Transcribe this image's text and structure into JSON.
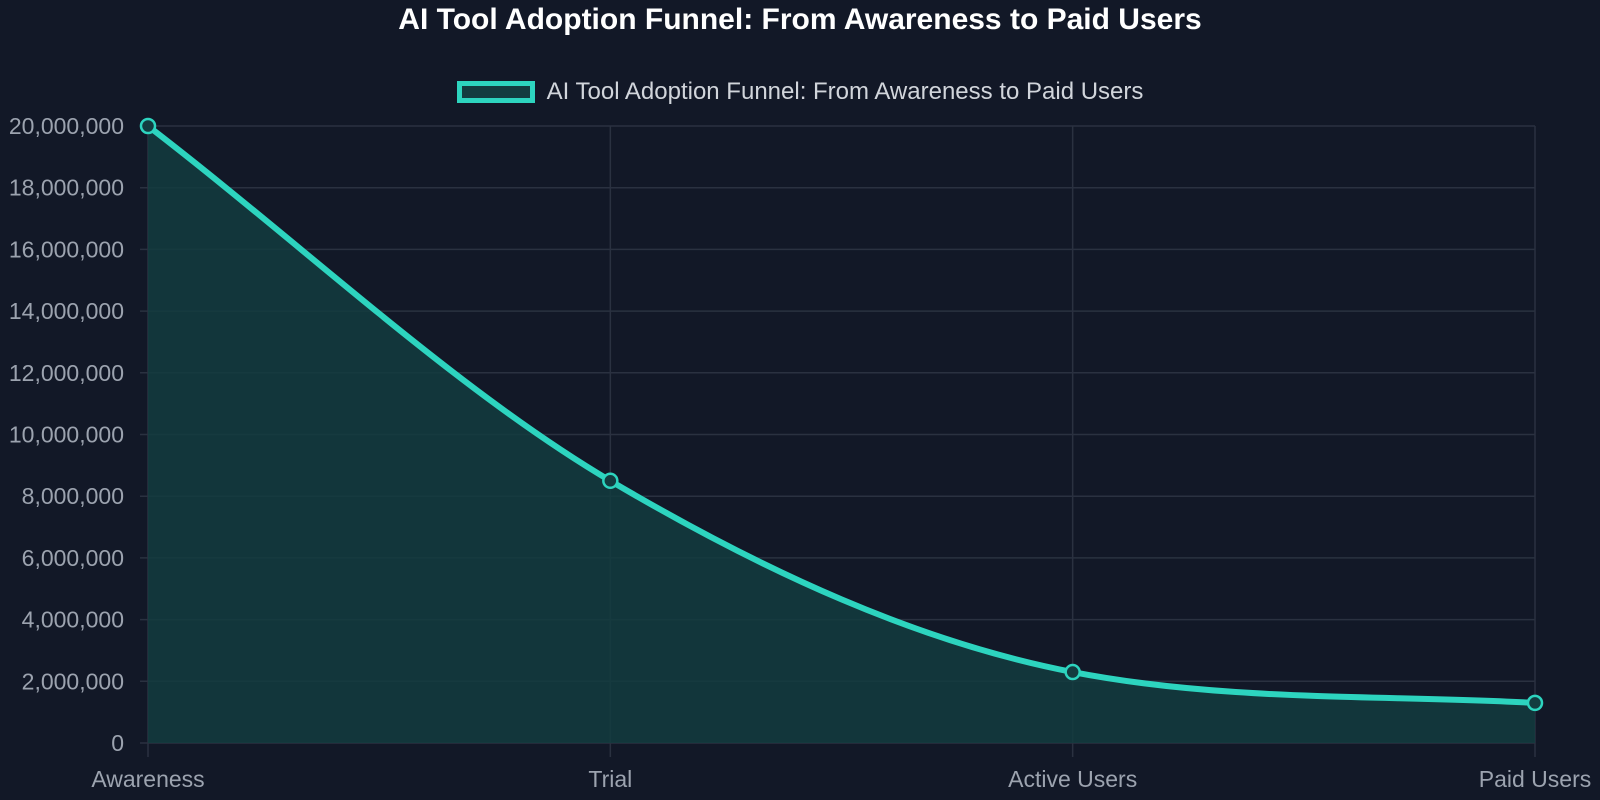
{
  "title": "AI Tool Adoption Funnel: From Awareness to Paid Users",
  "legend": {
    "label": "AI Tool Adoption Funnel: From Awareness to Paid Users"
  },
  "colors": {
    "background": "#121827",
    "line": "#2dd4bf",
    "fill": "#133c40",
    "grid": "#2a3140",
    "tick_text": "#9ca3af",
    "title_text": "#ffffff",
    "legend_text": "#d1d5db"
  },
  "chart_data": {
    "type": "area",
    "title": "AI Tool Adoption Funnel: From Awareness to Paid Users",
    "categories": [
      "Awareness",
      "Trial",
      "Active Users",
      "Paid Users"
    ],
    "series": [
      {
        "name": "AI Tool Adoption Funnel: From Awareness to Paid Users",
        "values": [
          20000000,
          8500000,
          2300000,
          1300000
        ]
      }
    ],
    "ylim": [
      0,
      20000000
    ],
    "yticks": [
      0,
      2000000,
      4000000,
      6000000,
      8000000,
      10000000,
      12000000,
      14000000,
      16000000,
      18000000,
      20000000
    ],
    "ytick_labels": [
      "0",
      "2,000,000",
      "4,000,000",
      "6,000,000",
      "8,000,000",
      "10,000,000",
      "12,000,000",
      "14,000,000",
      "16,000,000",
      "18,000,000",
      "20,000,000"
    ],
    "xlabel": "",
    "ylabel": "",
    "grid": true,
    "legend_position": "top-center",
    "smooth": true
  }
}
